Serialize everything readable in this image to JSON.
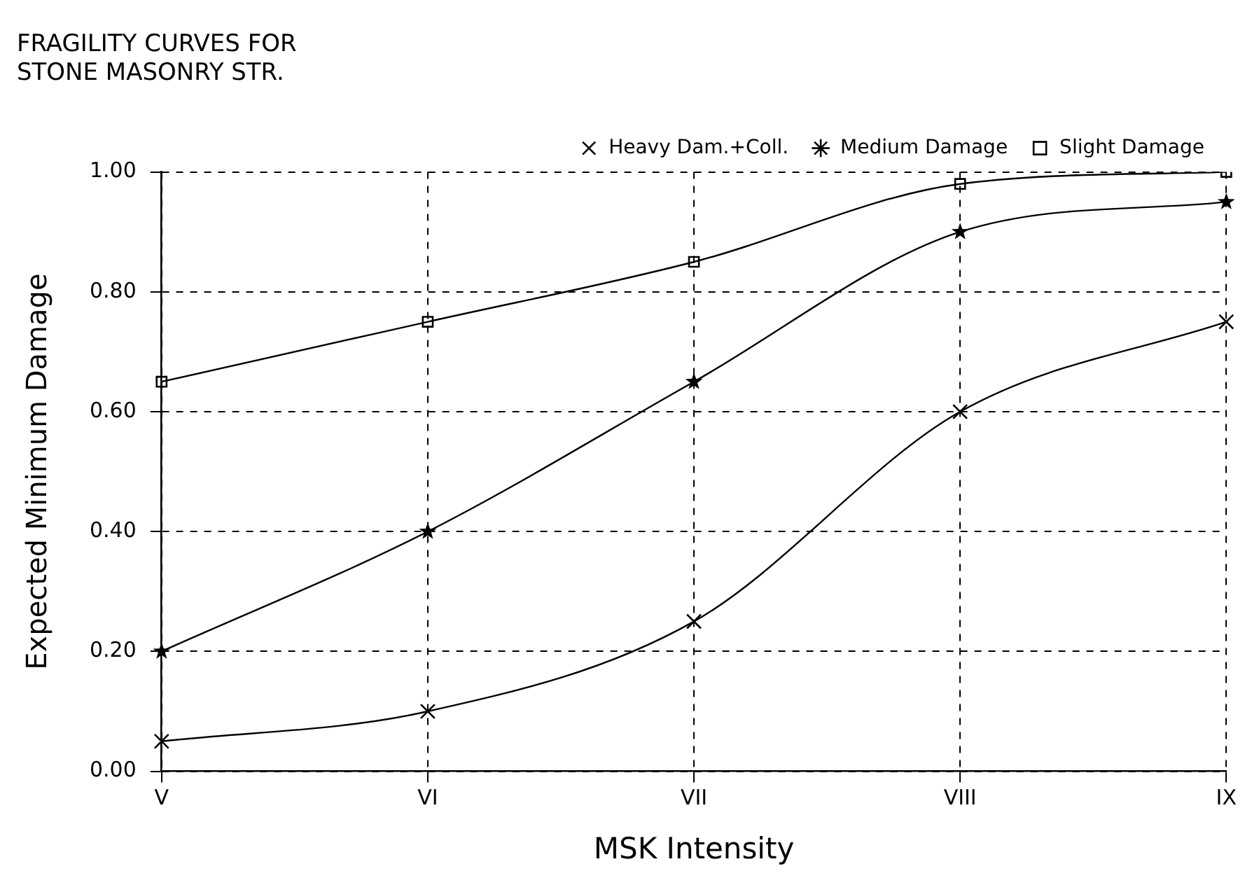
{
  "chart_data": {
    "type": "line",
    "title": "FRAGILITY CURVES FOR\nSTONE MASONRY STR.",
    "xlabel": "MSK Intensity",
    "ylabel": "Expected Minimum Damage",
    "categories": [
      "V",
      "VI",
      "VII",
      "VIII",
      "IX"
    ],
    "series": [
      {
        "name": "Heavy Dam.+Coll.",
        "color": "#000000",
        "marker": "cross",
        "values": [
          0.05,
          0.1,
          0.25,
          0.6,
          0.75
        ]
      },
      {
        "name": "Medium Damage",
        "color": "#000000",
        "marker": "star",
        "values": [
          0.2,
          0.4,
          0.65,
          0.9,
          0.95
        ]
      },
      {
        "name": "Slight Damage",
        "color": "#000000",
        "marker": "square",
        "values": [
          0.65,
          0.75,
          0.85,
          0.98,
          1.0
        ]
      }
    ],
    "ylim": [
      0,
      1
    ],
    "yticks": [
      {
        "value": 0,
        "label": "0.00"
      },
      {
        "value": 0.2,
        "label": "0.20"
      },
      {
        "value": 0.4,
        "label": "0.40"
      },
      {
        "value": 0.6,
        "label": "0.60"
      },
      {
        "value": 0.8,
        "label": "0.80"
      },
      {
        "value": 1,
        "label": "1.00"
      }
    ],
    "grid": true,
    "legend": "top right",
    "line_style": "solid"
  }
}
